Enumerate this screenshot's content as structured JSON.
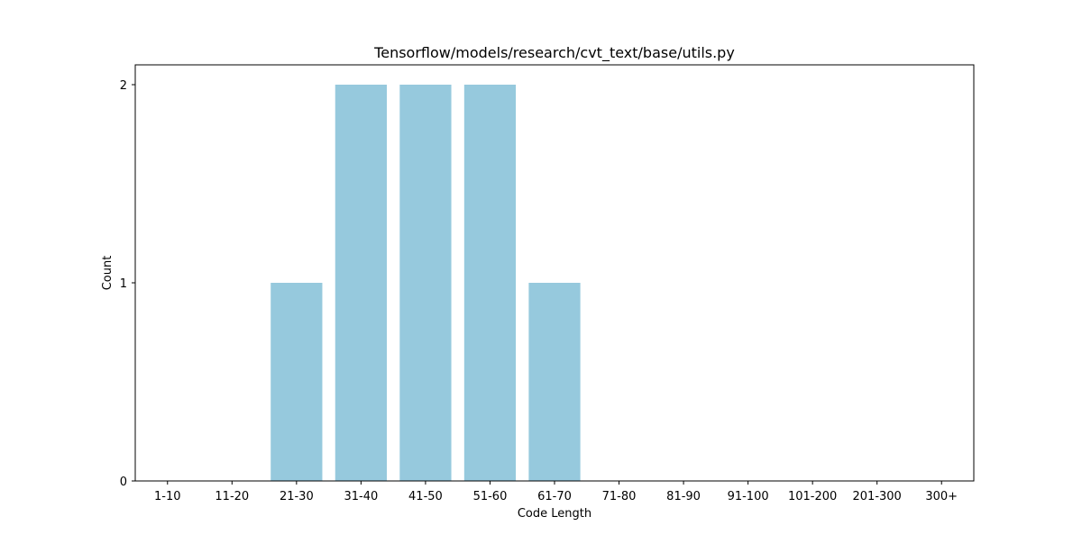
{
  "chart_data": {
    "type": "bar",
    "title": "Tensorflow/models/research/cvt_text/base/utils.py",
    "xlabel": "Code Length",
    "ylabel": "Count",
    "categories": [
      "1-10",
      "11-20",
      "21-30",
      "31-40",
      "41-50",
      "51-60",
      "61-70",
      "71-80",
      "81-90",
      "91-100",
      "101-200",
      "201-300",
      "300+"
    ],
    "values": [
      0,
      0,
      1,
      2,
      2,
      2,
      1,
      0,
      0,
      0,
      0,
      0,
      0
    ],
    "ylim": [
      0,
      2.1
    ],
    "yticks": [
      0,
      1,
      2
    ],
    "grid": false,
    "colors": {
      "bar": "#96c9dd",
      "axis": "#000000"
    }
  }
}
